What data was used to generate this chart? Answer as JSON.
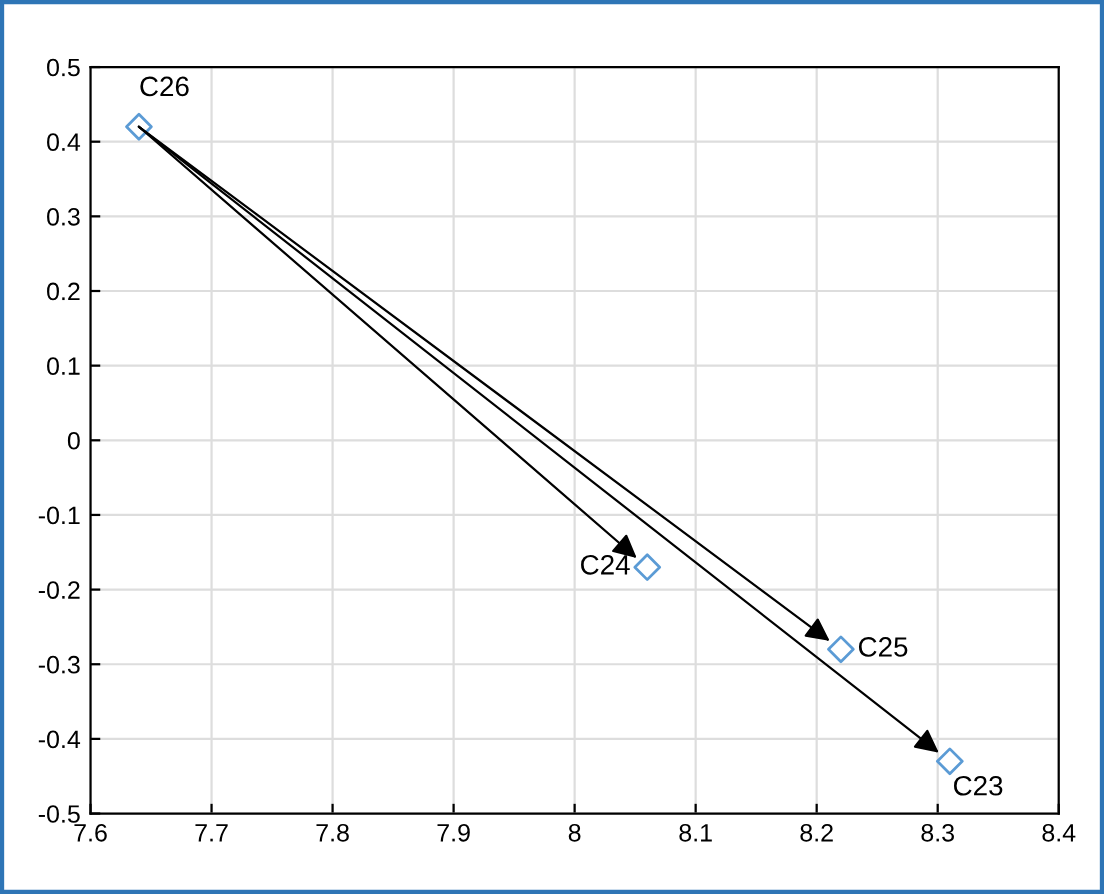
{
  "chart_data": {
    "type": "scatter",
    "x": [
      7.64,
      8.06,
      8.22,
      8.31
    ],
    "series": [
      {
        "color": "#5b9bd5",
        "values": [
          0.42,
          -0.17,
          -0.28,
          -0.43
        ]
      }
    ],
    "marker": "diamond",
    "annotations": [
      {
        "text": "C26",
        "x": 7.64,
        "y": 0.42
      },
      {
        "text": "C24",
        "x": 8.06,
        "y": -0.17
      },
      {
        "text": "C25",
        "x": 8.22,
        "y": -0.28
      },
      {
        "text": "C23",
        "x": 8.31,
        "y": -0.43
      }
    ],
    "xlim": [
      7.6,
      8.4
    ],
    "xticks": [
      7.6,
      7.7,
      7.8,
      7.9,
      8,
      8.1,
      8.2,
      8.3,
      8.4
    ],
    "ylim": [
      -0.5,
      0.5
    ],
    "yticks": [
      -0.5,
      -0.4,
      -0.3,
      -0.2,
      -0.1,
      0,
      0.1,
      0.2,
      0.3,
      0.4,
      0.5
    ],
    "grid": true
  }
}
